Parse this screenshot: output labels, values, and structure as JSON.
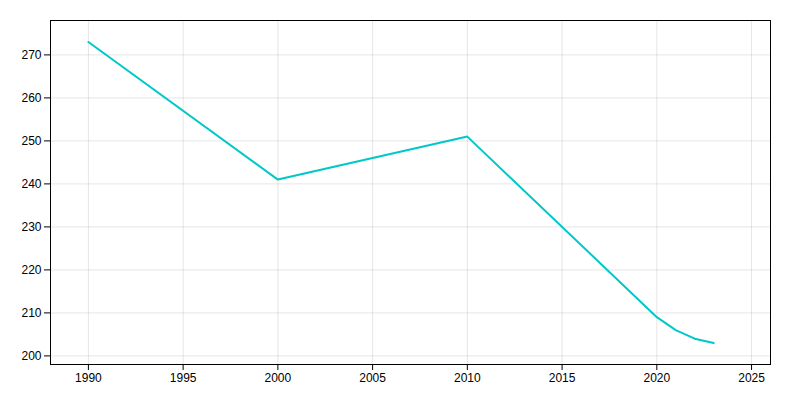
{
  "chart_data": {
    "type": "line",
    "x": [
      1990,
      2000,
      2010,
      2020,
      2021,
      2022,
      2023
    ],
    "values": [
      273,
      241,
      251,
      209,
      206,
      204,
      203
    ],
    "color": "#00c8c8",
    "xlim": [
      1988,
      2026
    ],
    "ylim": [
      198,
      278
    ],
    "xticks": [
      1990,
      1995,
      2000,
      2005,
      2010,
      2015,
      2020,
      2025
    ],
    "yticks": [
      200,
      210,
      220,
      230,
      240,
      250,
      260,
      270
    ],
    "grid": true
  }
}
